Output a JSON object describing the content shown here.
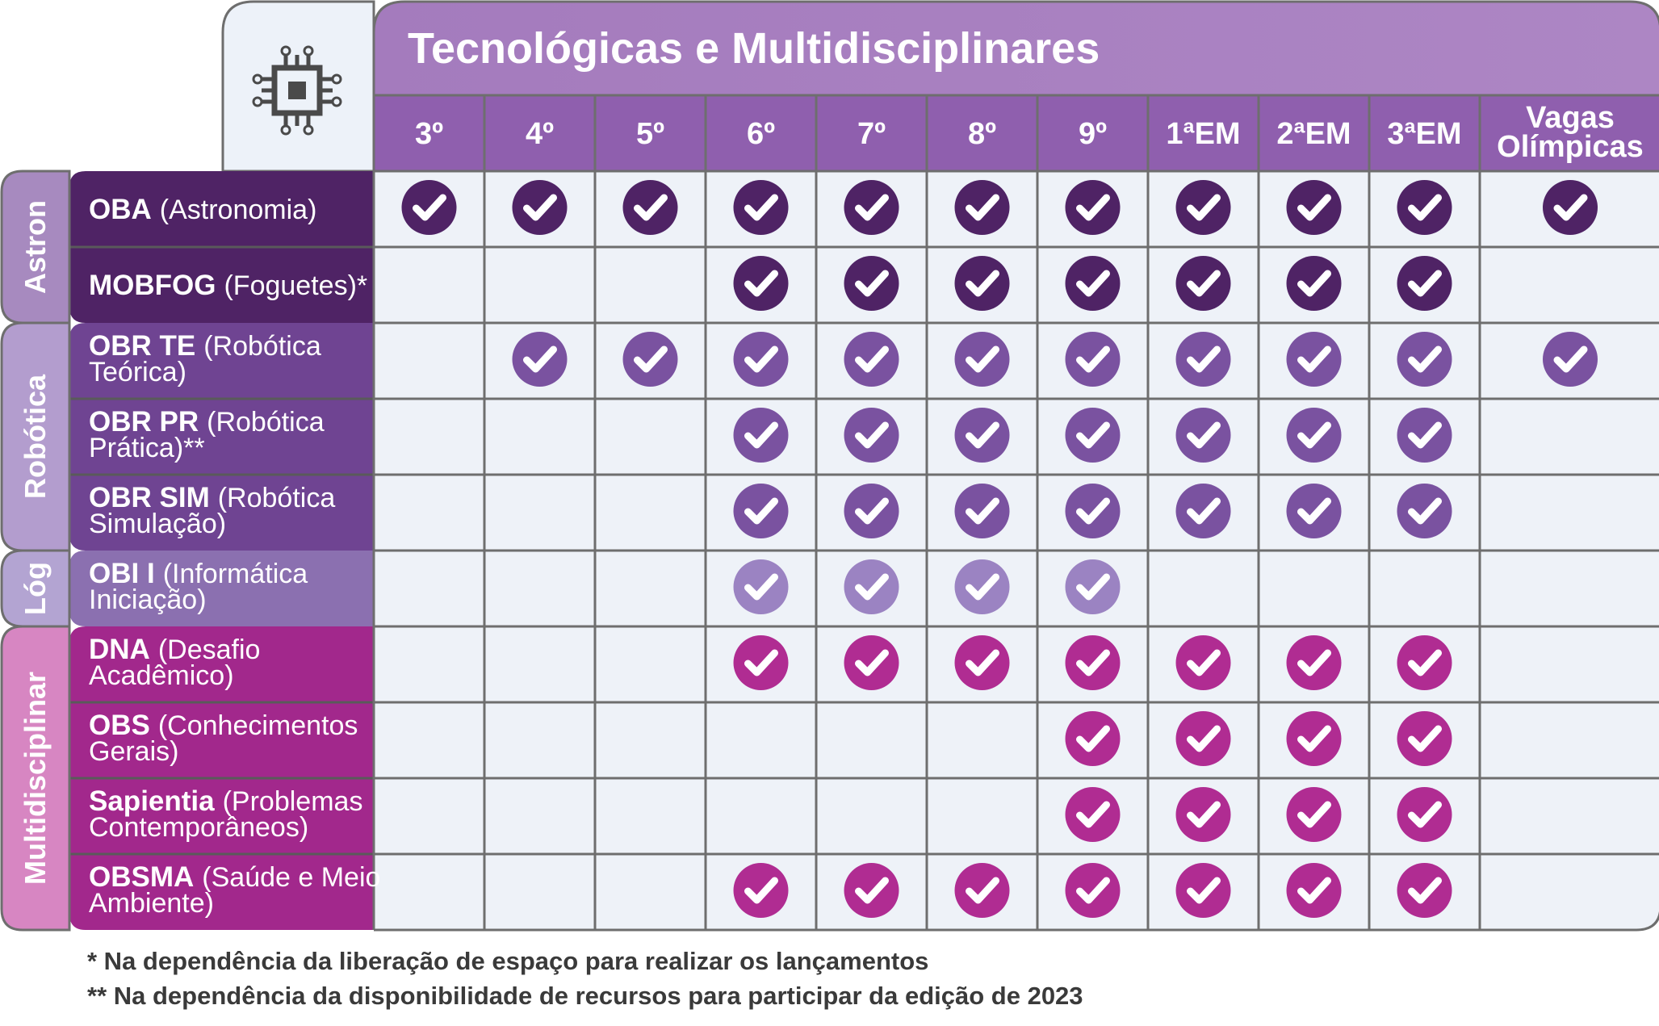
{
  "title": "Tecnológicas e Multidisciplinares",
  "header_icon": "circuit-chip-icon",
  "columns": [
    "3º",
    "4º",
    "5º",
    "6º",
    "7º",
    "8º",
    "9º",
    "1ªEM",
    "2ªEM",
    "3ªEM",
    "Vagas Olímpicas"
  ],
  "groups": [
    {
      "label": "Astron",
      "color": "#4f2365",
      "label_bg": "#a78abf",
      "check_color": "#4f2365",
      "rows": [
        0,
        1
      ]
    },
    {
      "label": "Robótica",
      "color": "#6f4492",
      "label_bg": "#b39dce",
      "check_color": "#7a52a0",
      "rows": [
        2,
        3,
        4
      ]
    },
    {
      "label": "Lóg",
      "color": "#8b70b0",
      "label_bg": "#b3a4d2",
      "check_color": "#9b83c2",
      "rows": [
        5
      ]
    },
    {
      "label": "Multidisciplinar",
      "color": "#a2288c",
      "label_bg": "#d786c2",
      "check_color": "#b02c92",
      "rows": [
        6,
        7,
        8,
        9
      ]
    }
  ],
  "rows": [
    {
      "bold": "OBA",
      "normal": "(Astronomia)",
      "checks": [
        1,
        1,
        1,
        1,
        1,
        1,
        1,
        1,
        1,
        1,
        1
      ]
    },
    {
      "bold": "MOBFOG",
      "normal": "(Foguetes)*",
      "checks": [
        0,
        0,
        0,
        1,
        1,
        1,
        1,
        1,
        1,
        1,
        0
      ]
    },
    {
      "bold": "OBR TE",
      "normal": "(Robótica Teórica)",
      "checks": [
        0,
        1,
        1,
        1,
        1,
        1,
        1,
        1,
        1,
        1,
        1
      ]
    },
    {
      "bold": "OBR PR",
      "normal": "(Robótica Prática)**",
      "checks": [
        0,
        0,
        0,
        1,
        1,
        1,
        1,
        1,
        1,
        1,
        0
      ]
    },
    {
      "bold": "OBR SIM",
      "normal": "(Robótica Simulação)",
      "checks": [
        0,
        0,
        0,
        1,
        1,
        1,
        1,
        1,
        1,
        1,
        0
      ]
    },
    {
      "bold": "OBI I",
      "normal": "(Informática Iniciação)",
      "checks": [
        0,
        0,
        0,
        1,
        1,
        1,
        1,
        0,
        0,
        0,
        0
      ]
    },
    {
      "bold": "DNA",
      "normal": "(Desafio Acadêmico)",
      "checks": [
        0,
        0,
        0,
        1,
        1,
        1,
        1,
        1,
        1,
        1,
        0
      ]
    },
    {
      "bold": "OBS",
      "normal": "(Conhecimentos Gerais)",
      "checks": [
        0,
        0,
        0,
        0,
        0,
        0,
        1,
        1,
        1,
        1,
        0
      ]
    },
    {
      "bold": "Sapientia",
      "normal": "(Problemas Contemporâneos)",
      "checks": [
        0,
        0,
        0,
        0,
        0,
        0,
        1,
        1,
        1,
        1,
        0
      ]
    },
    {
      "bold": "OBSMA",
      "normal": "(Saúde e Meio Ambiente)",
      "checks": [
        0,
        0,
        0,
        1,
        1,
        1,
        1,
        1,
        1,
        1,
        0
      ]
    }
  ],
  "footnotes": [
    "*  Na dependência da liberação de espaço para realizar os lançamentos",
    "** Na dependência da disponibilidade de recursos para participar da edição de 2023"
  ],
  "colors": {
    "header_purple": "#8f5fae",
    "title_purple": "#a77cbf",
    "cell_bg": "#eef2f8",
    "grid_line": "#6e6e6e",
    "corner_bg": "#edf2f9",
    "icon_color": "#4a4a4a"
  }
}
